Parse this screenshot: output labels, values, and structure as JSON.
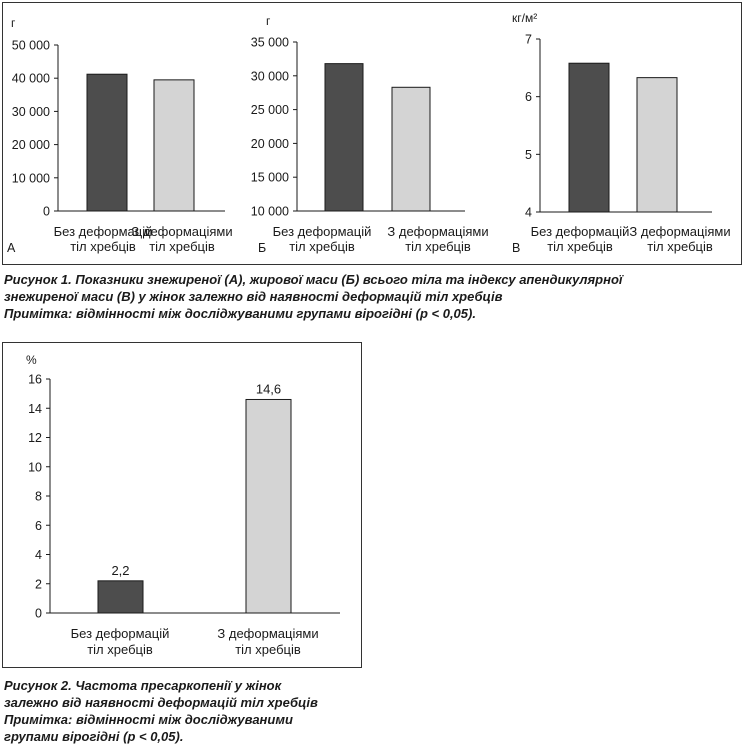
{
  "figure1": {
    "caption_lines": [
      "Рисунок 1. Показники знежиреної (А), жирової маси (Б) всього тіла та індексу апендикулярної",
      "знежиреної маси (В) у жінок залежно від наявності деформацій тіл хребців",
      "Примітка: відмінності між досліджуваними групами вірогідні (p < 0,05)."
    ]
  },
  "figure2": {
    "caption_lines": [
      "Рисунок 2. Частота пресаркопенії у жінок",
      "залежно від наявності деформацій тіл хребців",
      "Примітка: відмінності між досліджуваними",
      "групами вірогідні (p < 0,05)."
    ]
  },
  "chart_data": [
    {
      "type": "bar",
      "panel_label": "А",
      "unit": "г",
      "categories": [
        [
          "Без деформацій",
          "тіл хребців"
        ],
        [
          "З деформаціями",
          "тіл хребців"
        ]
      ],
      "values": [
        41200,
        39500
      ],
      "ylim": [
        0,
        50000
      ],
      "yticks": [
        0,
        10000,
        20000,
        30000,
        40000,
        50000
      ],
      "ytick_labels": [
        "0",
        "10 000",
        "20 000",
        "30 000",
        "40 000",
        "50 000"
      ],
      "colors": [
        "#4d4d4d",
        "#d4d4d4"
      ],
      "grid": false
    },
    {
      "type": "bar",
      "panel_label": "Б",
      "unit": "г",
      "categories": [
        [
          "Без деформацій",
          "тіл хребців"
        ],
        [
          "З деформаціями",
          "тіл хребців"
        ]
      ],
      "values": [
        31800,
        28300
      ],
      "ylim": [
        10000,
        35000
      ],
      "yticks": [
        10000,
        15000,
        20000,
        25000,
        30000,
        35000
      ],
      "ytick_labels": [
        "10 000",
        "15 000",
        "20 000",
        "25 000",
        "30 000",
        "35 000"
      ],
      "colors": [
        "#4d4d4d",
        "#d4d4d4"
      ],
      "grid": false
    },
    {
      "type": "bar",
      "panel_label": "В",
      "unit": "кг/м²",
      "categories": [
        [
          "Без деформацій",
          "тіл хребців"
        ],
        [
          "З деформаціями",
          "тіл хребців"
        ]
      ],
      "values": [
        6.58,
        6.33
      ],
      "ylim": [
        4,
        7
      ],
      "yticks": [
        4,
        5,
        6,
        7
      ],
      "ytick_labels": [
        "4",
        "5",
        "6",
        "7"
      ],
      "colors": [
        "#4d4d4d",
        "#d4d4d4"
      ],
      "grid": false
    },
    {
      "type": "bar",
      "unit": "%",
      "categories": [
        [
          "Без деформацій",
          "тіл хребців"
        ],
        [
          "З деформаціями",
          "тіл хребців"
        ]
      ],
      "values": [
        2.2,
        14.6
      ],
      "data_labels": [
        "2,2",
        "14,6"
      ],
      "ylim": [
        0,
        16
      ],
      "yticks": [
        0,
        2,
        4,
        6,
        8,
        10,
        12,
        14,
        16
      ],
      "ytick_labels": [
        "0",
        "2",
        "4",
        "6",
        "8",
        "10",
        "12",
        "14",
        "16"
      ],
      "colors": [
        "#4d4d4d",
        "#d4d4d4"
      ],
      "grid": false
    }
  ]
}
